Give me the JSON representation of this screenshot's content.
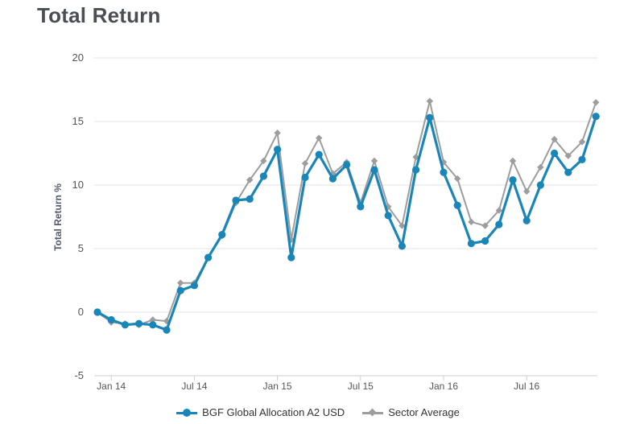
{
  "header": {
    "title": "Total Return"
  },
  "colors": {
    "series1": "#1a86b8",
    "series2": "#9d9d9d",
    "grid": "#e3e3e3"
  },
  "chart_data": {
    "type": "line",
    "title": "Total Return",
    "ylabel": "Total Return %",
    "xlabel": "",
    "ylim": [
      -5,
      20
    ],
    "yticks": [
      "20",
      "15",
      "10",
      "5",
      "0",
      "-5"
    ],
    "xticks": [
      "Jan 14",
      "Jul 14",
      "Jan 15",
      "Jul 15",
      "Jan 16",
      "Jul 16"
    ],
    "x": [
      "Dec 13",
      "Jan 14",
      "Feb 14",
      "Mar 14",
      "Apr 14",
      "May 14",
      "Jun 14",
      "Jul 14",
      "Aug 14",
      "Sep 14",
      "Oct 14",
      "Nov 14",
      "Dec 14",
      "Jan 15",
      "Feb 15",
      "Mar 15",
      "Apr 15",
      "May 15",
      "Jun 15",
      "Jul 15",
      "Aug 15",
      "Sep 15",
      "Oct 15",
      "Nov 15",
      "Dec 15",
      "Jan 16",
      "Feb 16",
      "Mar 16",
      "Apr 16",
      "May 16",
      "Jun 16",
      "Jul 16",
      "Aug 16",
      "Sep 16",
      "Oct 16",
      "Nov 16",
      "Dec 16"
    ],
    "series": [
      {
        "name": "BGF Global Allocation A2 USD",
        "marker": "circle",
        "values": [
          0.0,
          -0.6,
          -1.0,
          -0.9,
          -1.0,
          -1.4,
          1.7,
          2.1,
          4.3,
          6.1,
          8.8,
          8.9,
          10.7,
          12.8,
          4.3,
          10.6,
          12.4,
          10.5,
          11.6,
          8.3,
          11.2,
          7.6,
          5.2,
          11.2,
          15.3,
          11.0,
          8.4,
          5.4,
          5.6,
          6.9,
          10.4,
          7.2,
          10.0,
          12.5,
          11.0,
          12.0,
          15.4
        ]
      },
      {
        "name": "Sector Average",
        "marker": "diamond",
        "values": [
          0.0,
          -0.8,
          -0.9,
          -1.0,
          -0.6,
          -0.7,
          2.3,
          2.3,
          4.3,
          6.0,
          8.6,
          10.4,
          11.9,
          14.1,
          5.7,
          11.7,
          13.7,
          10.9,
          11.8,
          8.6,
          11.9,
          8.3,
          6.8,
          12.2,
          16.6,
          11.8,
          10.5,
          7.1,
          6.8,
          8.0,
          11.9,
          9.5,
          11.4,
          13.6,
          12.3,
          13.4,
          16.5
        ]
      }
    ],
    "grid": true,
    "legend_position": "bottom"
  }
}
